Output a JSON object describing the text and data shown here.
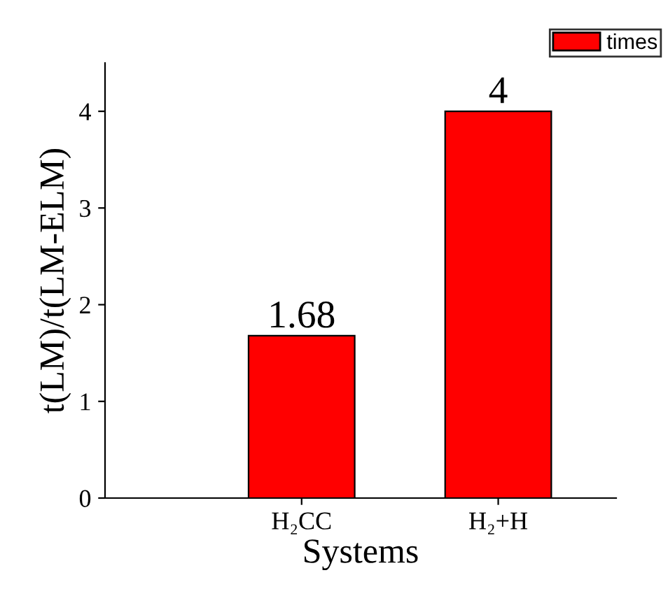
{
  "chart_data": {
    "type": "bar",
    "xlabel": "Systems",
    "ylabel": "t(LM)/t(LM-ELM)",
    "categories": [
      "H₂CC",
      "H₂+H"
    ],
    "series": [
      {
        "name": "times",
        "color": "#ff0000",
        "values": [
          1.68,
          4
        ]
      }
    ],
    "ylim": [
      0,
      4.5
    ],
    "yticks": [
      0,
      1,
      2,
      3,
      4
    ],
    "grid": false,
    "legend": "top right",
    "data_labels": true
  }
}
